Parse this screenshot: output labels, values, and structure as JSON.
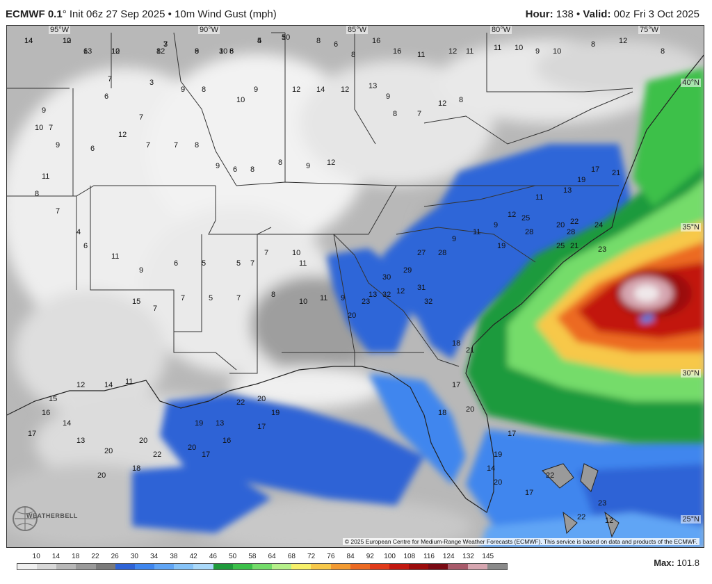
{
  "header": {
    "model": "ECMWF 0.1",
    "init": "° Init 06z 27 Sep 2025",
    "sep": " • ",
    "field": "10m Wind Gust (mph)",
    "hour_label": "Hour:",
    "hour": " 138",
    "valid_label": "Valid:",
    "valid": " 00z Fri 3 Oct 2025"
  },
  "map": {
    "lon_labels": [
      "95°W",
      "90°W",
      "85°W",
      "80°W",
      "75°W"
    ],
    "lat_labels": [
      "40°N",
      "35°N",
      "30°N",
      "25°N"
    ],
    "copyright": "© 2025 European Centre for Medium-Range Weather Forecasts (ECMWF). This service is based on data and products of the ECMWF.",
    "logo": "WEATHERBELL"
  },
  "legend": {
    "ticks": [
      "10",
      "14",
      "18",
      "22",
      "26",
      "30",
      "34",
      "38",
      "42",
      "46",
      "50",
      "58",
      "64",
      "68",
      "72",
      "76",
      "84",
      "92",
      "100",
      "108",
      "116",
      "124",
      "132",
      "145"
    ],
    "colors": [
      "#f0f0f0",
      "#d8d8d8",
      "#b8b8b8",
      "#9a9a9a",
      "#7a7a7a",
      "#2e63d6",
      "#3f86ee",
      "#60a5f5",
      "#86c3f8",
      "#aad9fa",
      "#1f9a3c",
      "#3cc04a",
      "#74dc6a",
      "#b6f08a",
      "#f7f06a",
      "#f7c84a",
      "#f29a32",
      "#ec6a22",
      "#e03a1a",
      "#c21810",
      "#9c0c0c",
      "#7a0a14",
      "#a85a6a",
      "#d6a6b0",
      "#8a8a8a"
    ],
    "max_label": "Max:",
    "max_value": " 101.8"
  },
  "gust_labels": [
    {
      "v": "14"
    },
    {
      "v": "10"
    },
    {
      "v": "6"
    },
    {
      "v": "12"
    },
    {
      "v": "8"
    },
    {
      "v": "3"
    },
    {
      "v": "8"
    },
    {
      "v": "10"
    },
    {
      "v": "8"
    },
    {
      "v": "5"
    },
    {
      "v": "10"
    },
    {
      "v": "8"
    },
    {
      "v": "6"
    },
    {
      "v": "8"
    },
    {
      "v": "16"
    },
    {
      "v": "16"
    },
    {
      "v": "11"
    },
    {
      "v": "12"
    },
    {
      "v": "11"
    },
    {
      "v": "11"
    },
    {
      "v": "10"
    },
    {
      "v": "9"
    },
    {
      "v": "10"
    },
    {
      "v": "8"
    },
    {
      "v": "12"
    },
    {
      "v": "8"
    },
    {
      "v": "7"
    },
    {
      "v": "3"
    },
    {
      "v": "6"
    },
    {
      "v": "7"
    },
    {
      "v": "9"
    },
    {
      "v": "8"
    },
    {
      "v": "10"
    },
    {
      "v": "9"
    },
    {
      "v": "12"
    },
    {
      "v": "14"
    },
    {
      "v": "12"
    },
    {
      "v": "13"
    },
    {
      "v": "9"
    },
    {
      "v": "8"
    },
    {
      "v": "7"
    },
    {
      "v": "12"
    },
    {
      "v": "8"
    },
    {
      "v": "9"
    },
    {
      "v": "10"
    },
    {
      "v": "7"
    },
    {
      "v": "9"
    },
    {
      "v": "6"
    },
    {
      "v": "12"
    },
    {
      "v": "7"
    },
    {
      "v": "7"
    },
    {
      "v": "8"
    },
    {
      "v": "9"
    },
    {
      "v": "6"
    },
    {
      "v": "8"
    },
    {
      "v": "8"
    },
    {
      "v": "9"
    },
    {
      "v": "12"
    },
    {
      "v": "11"
    },
    {
      "v": "8"
    },
    {
      "v": "7"
    },
    {
      "v": "4"
    },
    {
      "v": "6"
    },
    {
      "v": "11"
    },
    {
      "v": "9"
    },
    {
      "v": "6"
    },
    {
      "v": "5"
    },
    {
      "v": "5"
    },
    {
      "v": "7"
    },
    {
      "v": "7"
    },
    {
      "v": "10"
    },
    {
      "v": "11"
    },
    {
      "v": "15"
    },
    {
      "v": "7"
    },
    {
      "v": "7"
    },
    {
      "v": "5"
    },
    {
      "v": "7"
    },
    {
      "v": "8"
    },
    {
      "v": "10"
    },
    {
      "v": "11"
    },
    {
      "v": "9"
    },
    {
      "v": "13"
    },
    {
      "v": "12"
    },
    {
      "v": "9"
    },
    {
      "v": "11"
    },
    {
      "v": "9"
    },
    {
      "v": "12"
    },
    {
      "v": "11"
    },
    {
      "v": "13"
    },
    {
      "v": "19"
    },
    {
      "v": "17"
    },
    {
      "v": "21"
    },
    {
      "v": "19"
    },
    {
      "v": "25"
    },
    {
      "v": "28"
    },
    {
      "v": "20"
    },
    {
      "v": "22"
    },
    {
      "v": "25"
    },
    {
      "v": "28"
    },
    {
      "v": "21"
    },
    {
      "v": "23"
    },
    {
      "v": "24"
    },
    {
      "v": "28"
    },
    {
      "v": "27"
    },
    {
      "v": "29"
    },
    {
      "v": "31"
    },
    {
      "v": "32"
    },
    {
      "v": "30"
    },
    {
      "v": "32"
    },
    {
      "v": "23"
    },
    {
      "v": "20"
    },
    {
      "v": "18"
    },
    {
      "v": "21"
    },
    {
      "v": "17"
    },
    {
      "v": "20"
    },
    {
      "v": "18"
    },
    {
      "v": "17"
    },
    {
      "v": "19"
    },
    {
      "v": "14"
    },
    {
      "v": "20"
    },
    {
      "v": "22"
    },
    {
      "v": "17"
    },
    {
      "v": "23"
    },
    {
      "v": "22"
    },
    {
      "v": "12"
    },
    {
      "v": "22"
    },
    {
      "v": "20"
    },
    {
      "v": "19"
    },
    {
      "v": "13"
    },
    {
      "v": "16"
    },
    {
      "v": "17"
    },
    {
      "v": "19"
    },
    {
      "v": "20"
    },
    {
      "v": "17"
    },
    {
      "v": "20"
    },
    {
      "v": "22"
    },
    {
      "v": "18"
    },
    {
      "v": "20"
    },
    {
      "v": "20"
    },
    {
      "v": "13"
    },
    {
      "v": "14"
    },
    {
      "v": "16"
    },
    {
      "v": "17"
    },
    {
      "v": "15"
    },
    {
      "v": "12"
    },
    {
      "v": "14"
    },
    {
      "v": "11"
    },
    {
      "v": "14"
    },
    {
      "v": "12"
    },
    {
      "v": "13"
    },
    {
      "v": "10"
    },
    {
      "v": "12"
    },
    {
      "v": "7"
    },
    {
      "v": "9"
    },
    {
      "v": "3"
    },
    {
      "v": "6"
    },
    {
      "v": "4"
    },
    {
      "v": "5"
    }
  ]
}
